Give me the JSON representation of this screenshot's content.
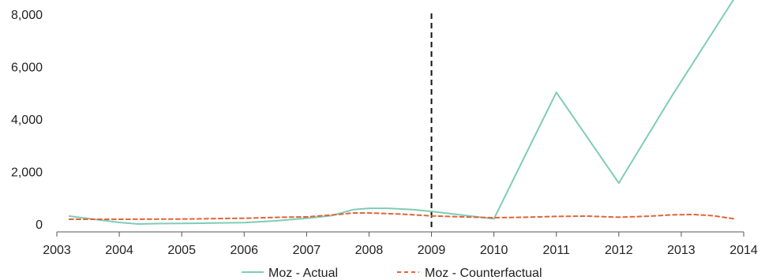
{
  "chart_data": {
    "type": "line",
    "title": "",
    "xlabel": "",
    "ylabel": "",
    "xlim": [
      2003,
      2014
    ],
    "ylim": [
      0,
      8000
    ],
    "x_ticks": [
      2003,
      2004,
      2005,
      2006,
      2007,
      2008,
      2009,
      2010,
      2011,
      2012,
      2013,
      2014
    ],
    "x_tick_labels": [
      "2003",
      "2004",
      "2005",
      "2006",
      "2007",
      "2008",
      "2009",
      "2010",
      "2011",
      "2012",
      "2013",
      "2014"
    ],
    "y_ticks": [
      0,
      2000,
      4000,
      6000,
      8000
    ],
    "y_tick_labels": [
      "0",
      "2,000",
      "4,000",
      "6,000",
      "8,000"
    ],
    "grid": false,
    "legend_position": "bottom",
    "vertical_reference_line": {
      "x": 2009,
      "style": "dashed",
      "color": "#111111"
    },
    "series": [
      {
        "name": "Moz - Actual",
        "color": "#7ecdb4",
        "style": "solid",
        "points": [
          [
            2003.2,
            300
          ],
          [
            2003.6,
            180
          ],
          [
            2004.0,
            60
          ],
          [
            2004.3,
            0
          ],
          [
            2004.6,
            15
          ],
          [
            2005.0,
            25
          ],
          [
            2005.5,
            35
          ],
          [
            2006.0,
            50
          ],
          [
            2006.5,
            120
          ],
          [
            2007.0,
            220
          ],
          [
            2007.4,
            320
          ],
          [
            2007.75,
            550
          ],
          [
            2008.0,
            600
          ],
          [
            2008.3,
            600
          ],
          [
            2008.7,
            550
          ],
          [
            2009.0,
            480
          ],
          [
            2009.5,
            340
          ],
          [
            2010.0,
            200
          ],
          [
            2011.0,
            5020
          ],
          [
            2012.0,
            1560
          ],
          [
            2012.85,
            4880
          ],
          [
            2013.85,
            8600
          ]
        ]
      },
      {
        "name": "Moz - Counterfactual",
        "color": "#e0643a",
        "style": "dashed",
        "points": [
          [
            2003.2,
            180
          ],
          [
            2004.0,
            180
          ],
          [
            2005.0,
            190
          ],
          [
            2006.0,
            220
          ],
          [
            2006.6,
            260
          ],
          [
            2007.0,
            270
          ],
          [
            2007.5,
            360
          ],
          [
            2007.75,
            420
          ],
          [
            2008.0,
            420
          ],
          [
            2008.5,
            380
          ],
          [
            2009.0,
            310
          ],
          [
            2009.5,
            270
          ],
          [
            2010.0,
            240
          ],
          [
            2010.5,
            260
          ],
          [
            2011.0,
            290
          ],
          [
            2011.5,
            300
          ],
          [
            2012.0,
            260
          ],
          [
            2012.5,
            300
          ],
          [
            2012.85,
            350
          ],
          [
            2013.2,
            360
          ],
          [
            2013.5,
            320
          ],
          [
            2013.85,
            200
          ]
        ]
      }
    ]
  }
}
